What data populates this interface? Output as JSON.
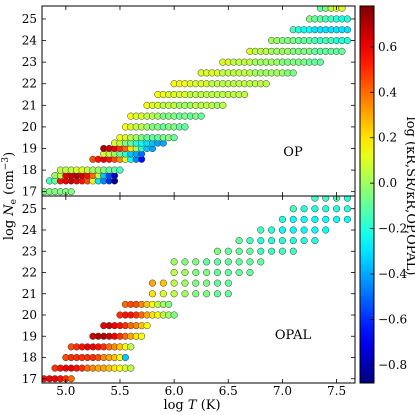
{
  "chart_data": {
    "type": "scatter",
    "xlabel_html": [
      "log ",
      "T",
      " (K)"
    ],
    "ylabel_parts": [
      "log ",
      "N",
      "e",
      " (cm",
      "−3",
      ")"
    ],
    "colorbar_label": "log (κR,SR/κR,OP,OPAL)",
    "colorbar": {
      "range": [
        -0.88,
        0.78
      ],
      "ticks": [
        -0.8,
        -0.6,
        -0.4,
        -0.2,
        0.0,
        0.2,
        0.4,
        0.6
      ],
      "tick_labels": [
        "−0.8",
        "−0.6",
        "−0.4",
        "−0.2",
        "0.0",
        "0.2",
        "0.4",
        "0.6"
      ],
      "colormap": "jet"
    },
    "xlim": [
      4.78,
      7.67
    ],
    "xticks": [
      5.0,
      5.5,
      6.0,
      6.5,
      7.0,
      7.5
    ],
    "xtick_labels": [
      "5.0",
      "5.5",
      "6.0",
      "6.5",
      "7.0",
      "7.5"
    ],
    "panels": [
      {
        "label": "OP",
        "ylim": [
          16.8,
          25.6
        ],
        "yticks": [
          17,
          18,
          19,
          20,
          21,
          22,
          23,
          24,
          25
        ],
        "ytick_labels": [
          "17",
          "18",
          "19",
          "20",
          "21",
          "22",
          "23",
          "24",
          "25"
        ],
        "rows": [
          {
            "y": 17.0,
            "xstart": 4.8,
            "dx": 0.05,
            "values": [
              -0.05,
              -0.05,
              -0.05,
              -0.05,
              -0.05,
              -0.05
            ]
          },
          {
            "y": 17.5,
            "xstart": 4.85,
            "dx": 0.05,
            "values": [
              -0.15,
              -0.1,
              0.55,
              0.6,
              0.65,
              0.6,
              0.55,
              0.45,
              0.1,
              -0.3,
              -0.45,
              -0.6,
              -0.85
            ]
          },
          {
            "y": 17.75,
            "xstart": 4.9,
            "dx": 0.05,
            "values": [
              0.0,
              0.05,
              0.6,
              0.65,
              0.7,
              0.65,
              0.55,
              0.4,
              0.05,
              -0.35,
              -0.55,
              -0.75
            ]
          },
          {
            "y": 18.0,
            "xstart": 4.95,
            "dx": 0.05,
            "values": [
              0.05,
              0.05,
              0.05,
              0.1,
              0.1,
              0.05,
              0.0,
              0.0,
              -0.05,
              -0.1,
              -0.1,
              -0.15
            ]
          },
          {
            "y": 18.5,
            "xstart": 5.25,
            "dx": 0.05,
            "values": [
              0.45,
              0.55,
              0.6,
              0.55,
              0.45,
              0.35,
              0.1,
              -0.25,
              -0.45,
              -0.65
            ]
          },
          {
            "y": 18.75,
            "xstart": 5.35,
            "dx": 0.05,
            "values": [
              0.1,
              0.05,
              0.0,
              -0.1,
              -0.2,
              -0.35,
              -0.4,
              -0.5
            ]
          },
          {
            "y": 19.0,
            "xstart": 5.35,
            "dx": 0.05,
            "values": [
              0.7,
              0.65,
              0.6,
              0.5,
              0.4,
              0.2,
              0.0,
              -0.2,
              -0.35,
              -0.4
            ]
          },
          {
            "y": 19.25,
            "xstart": 5.45,
            "dx": 0.05,
            "values": [
              0.1,
              0.05,
              -0.05,
              -0.1,
              -0.2,
              -0.25,
              -0.3,
              -0.35,
              -0.4,
              -0.4
            ]
          },
          {
            "y": 19.5,
            "xstart": 5.5,
            "dx": 0.05,
            "values": [
              0.15,
              0.1,
              0.05,
              0.0,
              -0.05,
              -0.1,
              -0.1,
              -0.1,
              -0.05,
              -0.05,
              -0.1
            ]
          },
          {
            "y": 20.0,
            "xstart": 5.55,
            "dx": 0.05,
            "values": [
              0.15,
              0.1,
              0.05,
              0.05,
              0.0,
              -0.05,
              -0.05,
              -0.1,
              -0.05,
              -0.05,
              -0.1,
              -0.1
            ]
          },
          {
            "y": 20.5,
            "xstart": 5.6,
            "dx": 0.05,
            "values": [
              0.15,
              0.1,
              0.1,
              0.05,
              0.05,
              0.0,
              -0.05,
              -0.05,
              -0.05,
              -0.1,
              -0.05,
              -0.1,
              -0.05,
              -0.1
            ]
          },
          {
            "y": 21.0,
            "xstart": 5.75,
            "dx": 0.05,
            "values": [
              0.15,
              0.1,
              0.1,
              0.05,
              0.05,
              0.05,
              0.0,
              0.0,
              0.0,
              0.05,
              0.05,
              0.05,
              0.05,
              0.0,
              0.05
            ]
          },
          {
            "y": 21.5,
            "xstart": 5.85,
            "dx": 0.05,
            "values": [
              0.15,
              0.15,
              0.1,
              0.1,
              0.1,
              0.1,
              0.05,
              0.05,
              0.05,
              0.05,
              0.05,
              0.05,
              0.05,
              0.05,
              0.05,
              0.05,
              0.05
            ]
          },
          {
            "y": 22.0,
            "xstart": 6.0,
            "dx": 0.05,
            "values": [
              0.15,
              0.15,
              0.15,
              0.1,
              0.1,
              0.1,
              0.1,
              0.05,
              0.05,
              0.05,
              0.05,
              0.05,
              0.05,
              0.05,
              0.05,
              0.05,
              0.05,
              0.05
            ]
          },
          {
            "y": 22.5,
            "xstart": 6.25,
            "dx": 0.05,
            "values": [
              0.1,
              0.1,
              0.1,
              0.1,
              0.05,
              0.05,
              0.05,
              0.05,
              0.05,
              0.05,
              0.0,
              0.0,
              0.0,
              0.0,
              0.0,
              0.0,
              -0.05,
              -0.05
            ]
          },
          {
            "y": 23.0,
            "xstart": 6.45,
            "dx": 0.05,
            "values": [
              0.1,
              0.1,
              0.05,
              0.05,
              0.05,
              0.05,
              0.0,
              0.0,
              0.0,
              0.0,
              0.0,
              -0.05,
              -0.05,
              -0.05,
              -0.05,
              -0.05,
              -0.1,
              -0.1,
              -0.1
            ]
          },
          {
            "y": 23.5,
            "xstart": 6.7,
            "dx": 0.05,
            "values": [
              0.1,
              0.05,
              0.05,
              0.05,
              0.0,
              0.0,
              0.0,
              0.0,
              -0.05,
              -0.05,
              -0.05,
              -0.05,
              -0.1,
              -0.1,
              -0.1,
              -0.1,
              -0.1,
              -0.1
            ]
          },
          {
            "y": 24.0,
            "xstart": 6.9,
            "dx": 0.05,
            "values": [
              0.0,
              0.0,
              -0.05,
              -0.05,
              -0.05,
              -0.1,
              -0.1,
              -0.1,
              -0.15,
              -0.15,
              -0.15,
              -0.15,
              -0.2,
              -0.2,
              -0.2
            ]
          },
          {
            "y": 24.5,
            "xstart": 7.1,
            "dx": 0.05,
            "values": [
              -0.15,
              -0.2,
              -0.25,
              -0.25,
              -0.3,
              -0.3,
              -0.3,
              -0.3,
              -0.3,
              -0.3,
              -0.3
            ]
          },
          {
            "y": 25.0,
            "xstart": 7.25,
            "dx": 0.05,
            "values": [
              -0.05,
              -0.1,
              -0.1,
              -0.15,
              -0.15,
              -0.2,
              -0.2,
              -0.2
            ]
          },
          {
            "y": 25.5,
            "xstart": 7.35,
            "dx": 0.05,
            "values": [
              -0.1,
              -0.05,
              0.05,
              0.1,
              0.1
            ]
          }
        ]
      },
      {
        "label": "OPAL",
        "ylim": [
          16.8,
          25.6
        ],
        "yticks": [
          17,
          18,
          19,
          20,
          21,
          22,
          23,
          24,
          25
        ],
        "ytick_labels": [
          "17",
          "18",
          "19",
          "20",
          "21",
          "22",
          "23",
          "24",
          "25"
        ],
        "rows": [
          {
            "y": 17.0,
            "xstart": 4.8,
            "dx": 0.05,
            "values": [
              0.55,
              0.6,
              0.6,
              0.55,
              0.5,
              0.4
            ]
          },
          {
            "y": 17.5,
            "xstart": 4.9,
            "dx": 0.05,
            "values": [
              0.5,
              0.55,
              0.6,
              0.6,
              0.55,
              0.5,
              0.4,
              0.35,
              0.3,
              0.3,
              0.25,
              0.2,
              0.15,
              0.1,
              0.05
            ]
          },
          {
            "y": 18.0,
            "xstart": 5.0,
            "dx": 0.05,
            "values": [
              0.45,
              0.5,
              0.5,
              0.5,
              0.5,
              0.5,
              0.45,
              0.35,
              0.3,
              0.25,
              0.15,
              -0.35
            ]
          },
          {
            "y": 18.5,
            "xstart": 5.05,
            "dx": 0.05,
            "values": [
              0.45,
              0.5,
              0.55,
              0.6,
              0.6,
              0.55,
              0.5,
              0.4,
              0.35,
              0.25,
              0.15,
              0.05
            ]
          },
          {
            "y": 19.0,
            "xstart": 5.25,
            "dx": 0.05,
            "values": [
              0.65,
              0.7,
              0.7,
              0.65,
              0.6,
              0.5,
              0.4,
              0.3,
              0.2,
              0.15
            ]
          },
          {
            "y": 19.5,
            "xstart": 5.35,
            "dx": 0.05,
            "values": [
              0.6,
              0.65,
              0.6,
              0.55,
              0.5,
              0.4,
              0.35,
              0.25,
              0.15
            ]
          },
          {
            "y": 20.0,
            "xstart": 5.5,
            "dx": 0.05,
            "values": [
              0.5,
              0.55,
              0.55,
              0.5,
              0.4,
              0.3,
              0.2,
              0.15,
              0.05,
              0.0,
              -0.05
            ]
          },
          {
            "y": 20.5,
            "xstart": 5.55,
            "dx": 0.05,
            "values": [
              0.4,
              0.45,
              0.45,
              0.35,
              0.25,
              0.15,
              0.05,
              0.0,
              -0.05
            ]
          },
          {
            "y": 21.0,
            "xstart": 5.8,
            "dx": 0.1,
            "values": [
              0.2,
              0.1,
              0.05,
              0.0,
              -0.05,
              -0.05,
              -0.1,
              -0.1
            ]
          },
          {
            "y": 21.5,
            "xstart": 5.8,
            "dx": 0.1,
            "values": [
              0.3,
              0.25,
              0.05,
              0.0,
              -0.05,
              -0.05,
              -0.1,
              -0.1
            ]
          },
          {
            "y": 22.0,
            "xstart": 6.0,
            "dx": 0.1,
            "values": [
              0.05,
              0.0,
              -0.05,
              -0.05,
              -0.1,
              -0.1,
              -0.1,
              -0.1
            ]
          },
          {
            "y": 22.5,
            "xstart": 6.0,
            "dx": 0.1,
            "values": [
              0.0,
              -0.05,
              -0.05,
              -0.1,
              -0.1,
              -0.1,
              -0.1,
              -0.1,
              -0.1
            ]
          },
          {
            "y": 23.0,
            "xstart": 6.4,
            "dx": 0.1,
            "values": [
              -0.05,
              -0.1,
              -0.1,
              -0.1,
              -0.15,
              -0.15,
              -0.15,
              -0.15
            ]
          },
          {
            "y": 23.5,
            "xstart": 6.6,
            "dx": 0.1,
            "values": [
              -0.1,
              -0.15,
              -0.2,
              -0.2,
              -0.2,
              -0.2,
              -0.2,
              -0.2
            ]
          },
          {
            "y": 24.0,
            "xstart": 6.8,
            "dx": 0.1,
            "values": [
              -0.15,
              -0.2,
              -0.25,
              -0.25,
              -0.25,
              -0.25,
              -0.25
            ]
          },
          {
            "y": 24.5,
            "xstart": 7.0,
            "dx": 0.1,
            "values": [
              -0.2,
              -0.25,
              -0.25,
              -0.25,
              -0.25,
              -0.25,
              -0.25
            ]
          },
          {
            "y": 25.0,
            "xstart": 7.1,
            "dx": 0.1,
            "values": [
              -0.15,
              -0.2,
              -0.2,
              -0.2,
              -0.2,
              -0.2
            ]
          },
          {
            "y": 25.5,
            "xstart": 7.3,
            "dx": 0.1,
            "values": [
              -0.15,
              -0.15,
              -0.15,
              -0.2
            ]
          }
        ]
      }
    ]
  }
}
